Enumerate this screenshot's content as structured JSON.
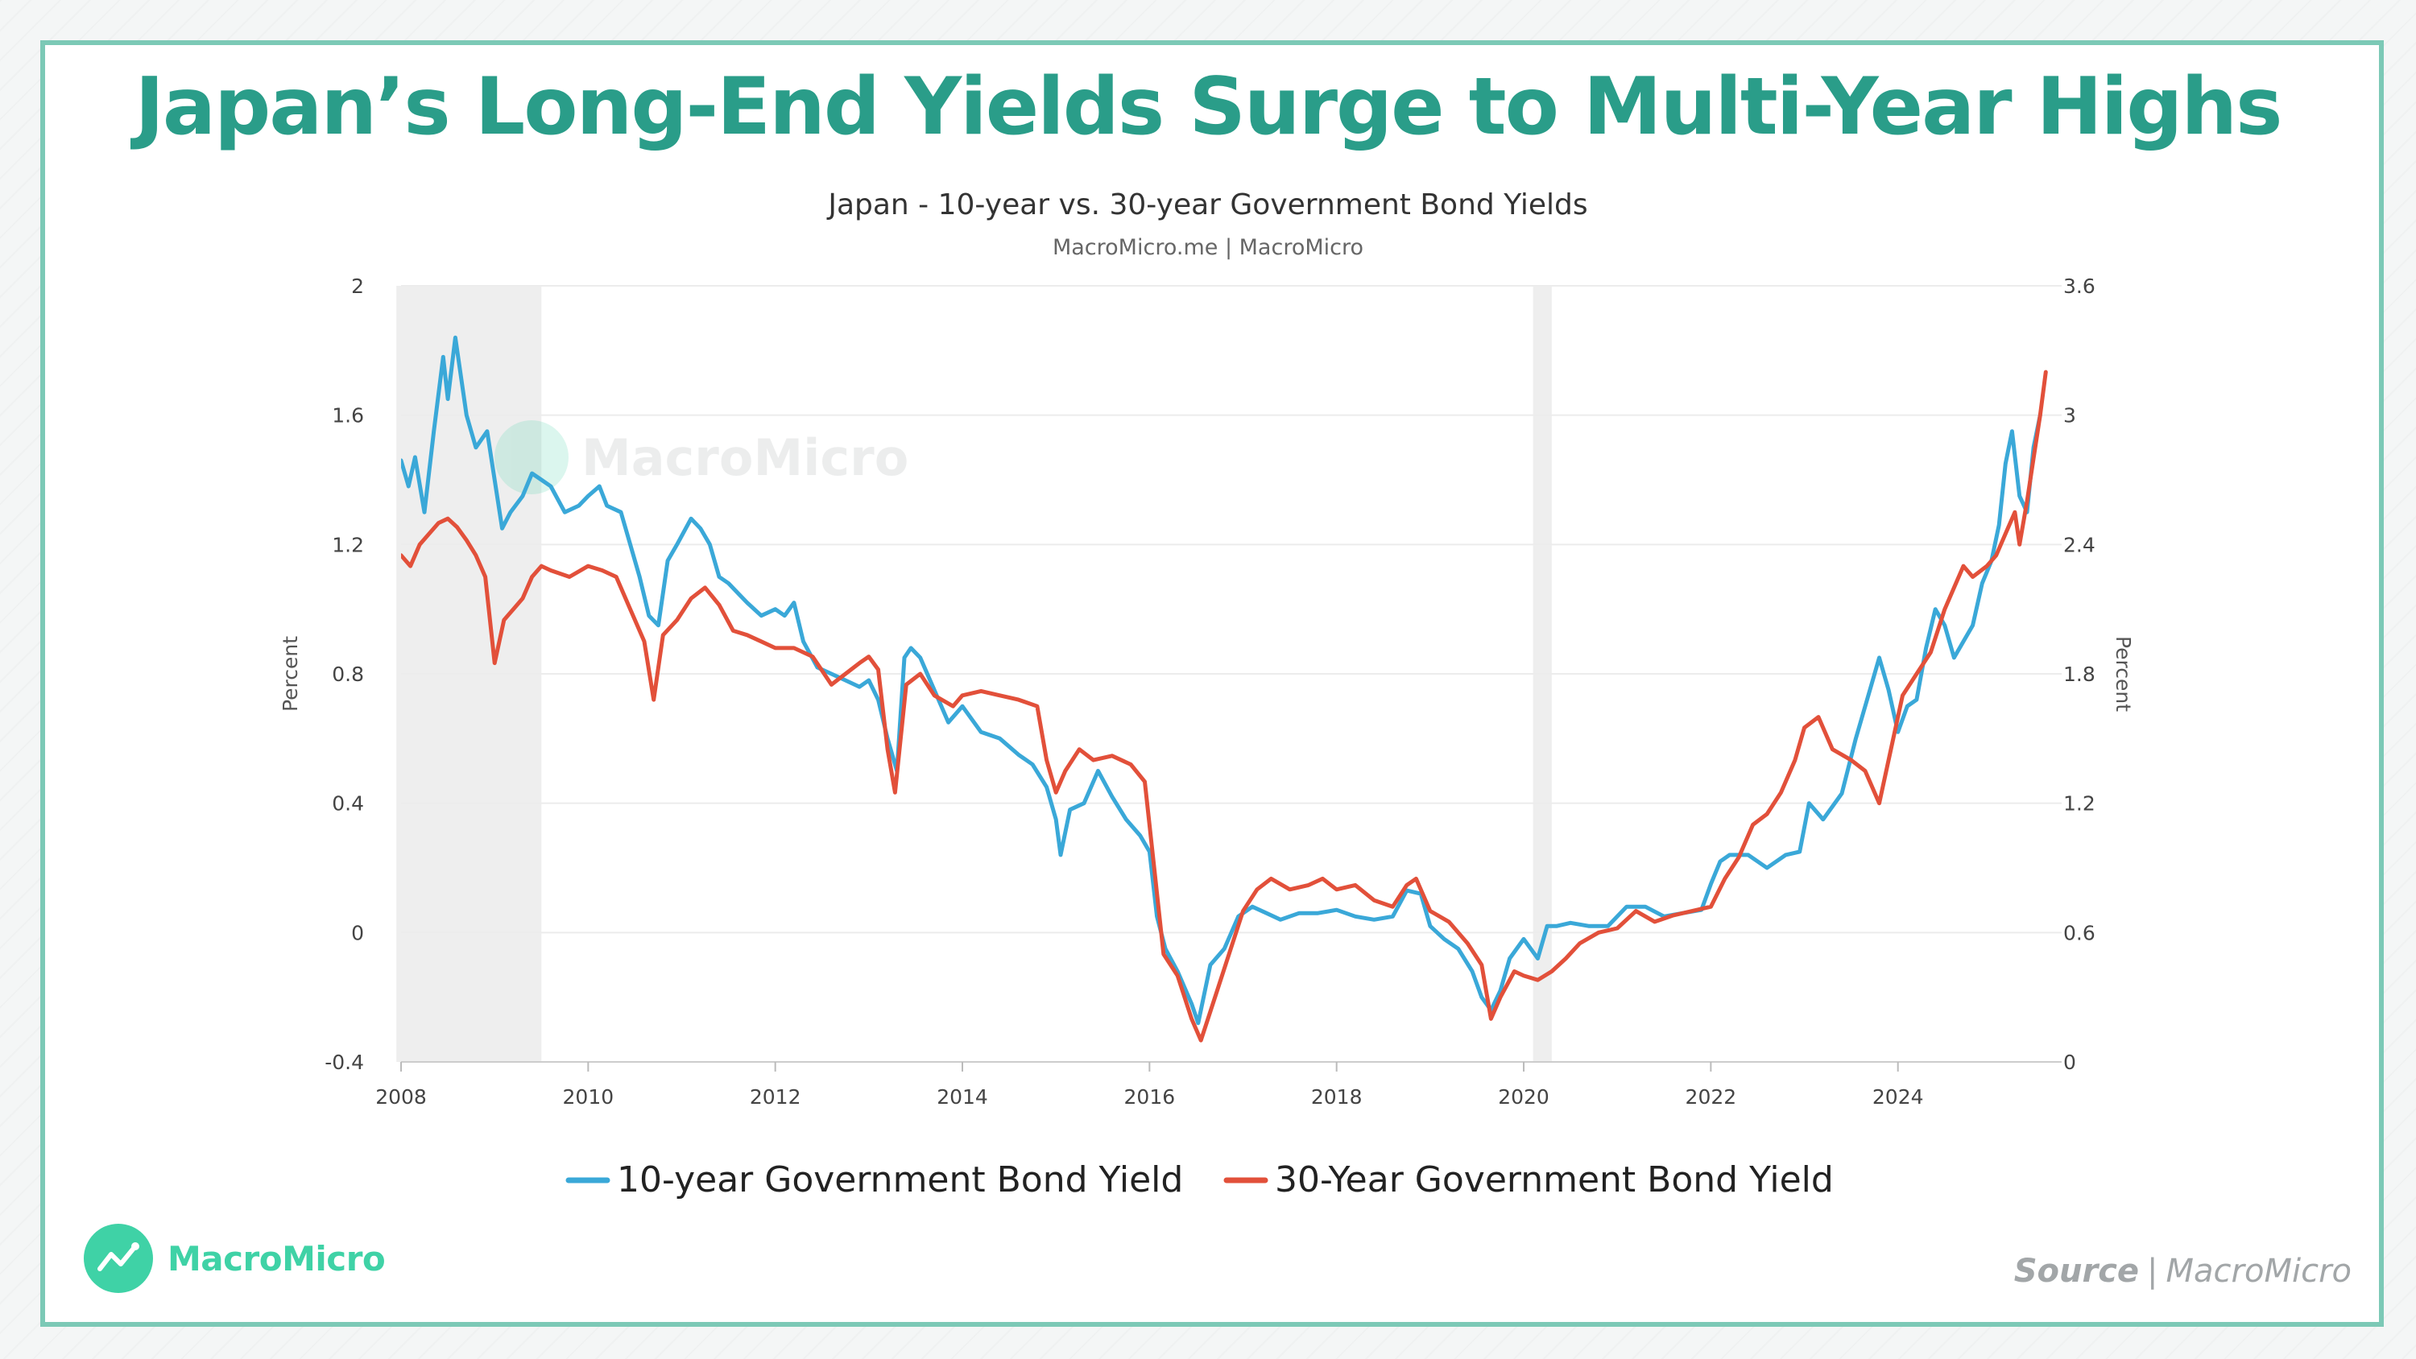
{
  "headline": "Japan’s Long-End Yields Surge to Multi-Year Highs",
  "brand": {
    "name": "MacroMicro"
  },
  "source": {
    "label": "Source",
    "separator": "|",
    "name": "MacroMicro"
  },
  "colors": {
    "series1": "#3aa8d8",
    "series2": "#e2503a",
    "accent": "#2a9d89",
    "frame": "#7cc9b6",
    "recession": "#eeeeee"
  },
  "chart_data": {
    "type": "line",
    "title": "Japan - 10-year vs. 30-year Government Bond Yields",
    "subtitle": "MacroMicro.me | MacroMicro",
    "watermark": "MacroMicro",
    "xlim": [
      2008.0,
      2025.75
    ],
    "x_ticks": [
      2008,
      2010,
      2012,
      2014,
      2016,
      2018,
      2020,
      2022,
      2024
    ],
    "y_left": {
      "label": "Percent",
      "range": [
        -0.4,
        2.0
      ],
      "ticks": [
        -0.4,
        0,
        0.4,
        0.8,
        1.2,
        1.6,
        2
      ]
    },
    "y_right": {
      "label": "Percent",
      "range": [
        0,
        3.6
      ],
      "ticks": [
        0,
        0.6,
        1.2,
        1.8,
        2.4,
        3,
        3.6
      ]
    },
    "shaded_periods": [
      {
        "start": 2007.95,
        "end": 2009.5
      },
      {
        "start": 2020.1,
        "end": 2020.3
      }
    ],
    "series": [
      {
        "name": "10-year Government Bond Yield",
        "axis": "left",
        "color": "#3aa8d8",
        "points": [
          [
            2008.0,
            1.46
          ],
          [
            2008.08,
            1.38
          ],
          [
            2008.15,
            1.47
          ],
          [
            2008.25,
            1.3
          ],
          [
            2008.35,
            1.55
          ],
          [
            2008.45,
            1.78
          ],
          [
            2008.5,
            1.65
          ],
          [
            2008.58,
            1.84
          ],
          [
            2008.7,
            1.6
          ],
          [
            2008.8,
            1.5
          ],
          [
            2008.92,
            1.55
          ],
          [
            2009.0,
            1.4
          ],
          [
            2009.08,
            1.25
          ],
          [
            2009.17,
            1.3
          ],
          [
            2009.3,
            1.35
          ],
          [
            2009.4,
            1.42
          ],
          [
            2009.5,
            1.4
          ],
          [
            2009.6,
            1.38
          ],
          [
            2009.75,
            1.3
          ],
          [
            2009.9,
            1.32
          ],
          [
            2010.0,
            1.35
          ],
          [
            2010.12,
            1.38
          ],
          [
            2010.2,
            1.32
          ],
          [
            2010.35,
            1.3
          ],
          [
            2010.45,
            1.2
          ],
          [
            2010.55,
            1.1
          ],
          [
            2010.65,
            0.98
          ],
          [
            2010.75,
            0.95
          ],
          [
            2010.85,
            1.15
          ],
          [
            2010.95,
            1.2
          ],
          [
            2011.1,
            1.28
          ],
          [
            2011.2,
            1.25
          ],
          [
            2011.3,
            1.2
          ],
          [
            2011.4,
            1.1
          ],
          [
            2011.5,
            1.08
          ],
          [
            2011.6,
            1.05
          ],
          [
            2011.7,
            1.02
          ],
          [
            2011.85,
            0.98
          ],
          [
            2012.0,
            1.0
          ],
          [
            2012.1,
            0.98
          ],
          [
            2012.2,
            1.02
          ],
          [
            2012.3,
            0.9
          ],
          [
            2012.45,
            0.82
          ],
          [
            2012.6,
            0.8
          ],
          [
            2012.75,
            0.78
          ],
          [
            2012.9,
            0.76
          ],
          [
            2013.0,
            0.78
          ],
          [
            2013.1,
            0.72
          ],
          [
            2013.2,
            0.6
          ],
          [
            2013.3,
            0.5
          ],
          [
            2013.38,
            0.85
          ],
          [
            2013.45,
            0.88
          ],
          [
            2013.55,
            0.85
          ],
          [
            2013.7,
            0.75
          ],
          [
            2013.85,
            0.65
          ],
          [
            2014.0,
            0.7
          ],
          [
            2014.2,
            0.62
          ],
          [
            2014.4,
            0.6
          ],
          [
            2014.6,
            0.55
          ],
          [
            2014.75,
            0.52
          ],
          [
            2014.9,
            0.45
          ],
          [
            2015.0,
            0.35
          ],
          [
            2015.05,
            0.24
          ],
          [
            2015.15,
            0.38
          ],
          [
            2015.3,
            0.4
          ],
          [
            2015.45,
            0.5
          ],
          [
            2015.6,
            0.42
          ],
          [
            2015.75,
            0.35
          ],
          [
            2015.9,
            0.3
          ],
          [
            2016.0,
            0.25
          ],
          [
            2016.08,
            0.05
          ],
          [
            2016.17,
            -0.05
          ],
          [
            2016.3,
            -0.12
          ],
          [
            2016.45,
            -0.22
          ],
          [
            2016.52,
            -0.28
          ],
          [
            2016.65,
            -0.1
          ],
          [
            2016.8,
            -0.05
          ],
          [
            2016.95,
            0.05
          ],
          [
            2017.1,
            0.08
          ],
          [
            2017.25,
            0.06
          ],
          [
            2017.4,
            0.04
          ],
          [
            2017.6,
            0.06
          ],
          [
            2017.8,
            0.06
          ],
          [
            2018.0,
            0.07
          ],
          [
            2018.2,
            0.05
          ],
          [
            2018.4,
            0.04
          ],
          [
            2018.6,
            0.05
          ],
          [
            2018.75,
            0.13
          ],
          [
            2018.9,
            0.12
          ],
          [
            2019.0,
            0.02
          ],
          [
            2019.15,
            -0.02
          ],
          [
            2019.3,
            -0.05
          ],
          [
            2019.45,
            -0.12
          ],
          [
            2019.55,
            -0.2
          ],
          [
            2019.65,
            -0.24
          ],
          [
            2019.75,
            -0.18
          ],
          [
            2019.85,
            -0.08
          ],
          [
            2020.0,
            -0.02
          ],
          [
            2020.15,
            -0.08
          ],
          [
            2020.25,
            0.02
          ],
          [
            2020.35,
            0.02
          ],
          [
            2020.5,
            0.03
          ],
          [
            2020.7,
            0.02
          ],
          [
            2020.9,
            0.02
          ],
          [
            2021.1,
            0.08
          ],
          [
            2021.3,
            0.08
          ],
          [
            2021.5,
            0.05
          ],
          [
            2021.7,
            0.06
          ],
          [
            2021.9,
            0.07
          ],
          [
            2022.0,
            0.15
          ],
          [
            2022.1,
            0.22
          ],
          [
            2022.2,
            0.24
          ],
          [
            2022.4,
            0.24
          ],
          [
            2022.6,
            0.2
          ],
          [
            2022.8,
            0.24
          ],
          [
            2022.95,
            0.25
          ],
          [
            2023.05,
            0.4
          ],
          [
            2023.2,
            0.35
          ],
          [
            2023.4,
            0.43
          ],
          [
            2023.55,
            0.6
          ],
          [
            2023.7,
            0.75
          ],
          [
            2023.8,
            0.85
          ],
          [
            2023.9,
            0.75
          ],
          [
            2024.0,
            0.62
          ],
          [
            2024.1,
            0.7
          ],
          [
            2024.2,
            0.72
          ],
          [
            2024.3,
            0.88
          ],
          [
            2024.4,
            1.0
          ],
          [
            2024.5,
            0.95
          ],
          [
            2024.6,
            0.85
          ],
          [
            2024.7,
            0.9
          ],
          [
            2024.8,
            0.95
          ],
          [
            2024.9,
            1.08
          ],
          [
            2025.0,
            1.15
          ],
          [
            2025.08,
            1.26
          ],
          [
            2025.15,
            1.45
          ],
          [
            2025.22,
            1.55
          ],
          [
            2025.3,
            1.35
          ],
          [
            2025.38,
            1.3
          ],
          [
            2025.45,
            1.5
          ],
          [
            2025.52,
            1.6
          ]
        ]
      },
      {
        "name": "30-Year Government Bond Yield",
        "axis": "right",
        "color": "#e2503a",
        "points": [
          [
            2008.0,
            2.35
          ],
          [
            2008.1,
            2.3
          ],
          [
            2008.2,
            2.4
          ],
          [
            2008.3,
            2.45
          ],
          [
            2008.4,
            2.5
          ],
          [
            2008.5,
            2.52
          ],
          [
            2008.6,
            2.48
          ],
          [
            2008.7,
            2.42
          ],
          [
            2008.8,
            2.35
          ],
          [
            2008.9,
            2.25
          ],
          [
            2009.0,
            1.85
          ],
          [
            2009.1,
            2.05
          ],
          [
            2009.2,
            2.1
          ],
          [
            2009.3,
            2.15
          ],
          [
            2009.4,
            2.25
          ],
          [
            2009.5,
            2.3
          ],
          [
            2009.6,
            2.28
          ],
          [
            2009.8,
            2.25
          ],
          [
            2010.0,
            2.3
          ],
          [
            2010.15,
            2.28
          ],
          [
            2010.3,
            2.25
          ],
          [
            2010.45,
            2.1
          ],
          [
            2010.6,
            1.95
          ],
          [
            2010.7,
            1.68
          ],
          [
            2010.8,
            1.98
          ],
          [
            2010.95,
            2.05
          ],
          [
            2011.1,
            2.15
          ],
          [
            2011.25,
            2.2
          ],
          [
            2011.4,
            2.12
          ],
          [
            2011.55,
            2.0
          ],
          [
            2011.7,
            1.98
          ],
          [
            2011.85,
            1.95
          ],
          [
            2012.0,
            1.92
          ],
          [
            2012.2,
            1.92
          ],
          [
            2012.4,
            1.88
          ],
          [
            2012.6,
            1.75
          ],
          [
            2012.75,
            1.8
          ],
          [
            2012.9,
            1.85
          ],
          [
            2013.0,
            1.88
          ],
          [
            2013.1,
            1.82
          ],
          [
            2013.2,
            1.45
          ],
          [
            2013.28,
            1.25
          ],
          [
            2013.4,
            1.75
          ],
          [
            2013.55,
            1.8
          ],
          [
            2013.7,
            1.7
          ],
          [
            2013.9,
            1.65
          ],
          [
            2014.0,
            1.7
          ],
          [
            2014.2,
            1.72
          ],
          [
            2014.4,
            1.7
          ],
          [
            2014.6,
            1.68
          ],
          [
            2014.8,
            1.65
          ],
          [
            2014.9,
            1.4
          ],
          [
            2015.0,
            1.25
          ],
          [
            2015.1,
            1.35
          ],
          [
            2015.25,
            1.45
          ],
          [
            2015.4,
            1.4
          ],
          [
            2015.6,
            1.42
          ],
          [
            2015.8,
            1.38
          ],
          [
            2015.95,
            1.3
          ],
          [
            2016.05,
            0.9
          ],
          [
            2016.15,
            0.5
          ],
          [
            2016.3,
            0.4
          ],
          [
            2016.45,
            0.2
          ],
          [
            2016.55,
            0.1
          ],
          [
            2016.7,
            0.3
          ],
          [
            2016.85,
            0.5
          ],
          [
            2017.0,
            0.7
          ],
          [
            2017.15,
            0.8
          ],
          [
            2017.3,
            0.85
          ],
          [
            2017.5,
            0.8
          ],
          [
            2017.7,
            0.82
          ],
          [
            2017.85,
            0.85
          ],
          [
            2018.0,
            0.8
          ],
          [
            2018.2,
            0.82
          ],
          [
            2018.4,
            0.75
          ],
          [
            2018.6,
            0.72
          ],
          [
            2018.75,
            0.82
          ],
          [
            2018.85,
            0.85
          ],
          [
            2019.0,
            0.7
          ],
          [
            2019.2,
            0.65
          ],
          [
            2019.4,
            0.55
          ],
          [
            2019.55,
            0.45
          ],
          [
            2019.65,
            0.2
          ],
          [
            2019.75,
            0.3
          ],
          [
            2019.9,
            0.42
          ],
          [
            2020.0,
            0.4
          ],
          [
            2020.15,
            0.38
          ],
          [
            2020.3,
            0.42
          ],
          [
            2020.45,
            0.48
          ],
          [
            2020.6,
            0.55
          ],
          [
            2020.8,
            0.6
          ],
          [
            2021.0,
            0.62
          ],
          [
            2021.2,
            0.7
          ],
          [
            2021.4,
            0.65
          ],
          [
            2021.6,
            0.68
          ],
          [
            2021.8,
            0.7
          ],
          [
            2022.0,
            0.72
          ],
          [
            2022.15,
            0.85
          ],
          [
            2022.3,
            0.95
          ],
          [
            2022.45,
            1.1
          ],
          [
            2022.6,
            1.15
          ],
          [
            2022.75,
            1.25
          ],
          [
            2022.9,
            1.4
          ],
          [
            2023.0,
            1.55
          ],
          [
            2023.15,
            1.6
          ],
          [
            2023.3,
            1.45
          ],
          [
            2023.5,
            1.4
          ],
          [
            2023.65,
            1.35
          ],
          [
            2023.8,
            1.2
          ],
          [
            2023.95,
            1.5
          ],
          [
            2024.05,
            1.7
          ],
          [
            2024.2,
            1.8
          ],
          [
            2024.35,
            1.9
          ],
          [
            2024.5,
            2.1
          ],
          [
            2024.6,
            2.2
          ],
          [
            2024.7,
            2.3
          ],
          [
            2024.8,
            2.25
          ],
          [
            2024.95,
            2.3
          ],
          [
            2025.05,
            2.35
          ],
          [
            2025.15,
            2.45
          ],
          [
            2025.25,
            2.55
          ],
          [
            2025.3,
            2.4
          ],
          [
            2025.38,
            2.6
          ],
          [
            2025.45,
            2.8
          ],
          [
            2025.52,
            3.0
          ],
          [
            2025.58,
            3.2
          ]
        ]
      }
    ]
  }
}
